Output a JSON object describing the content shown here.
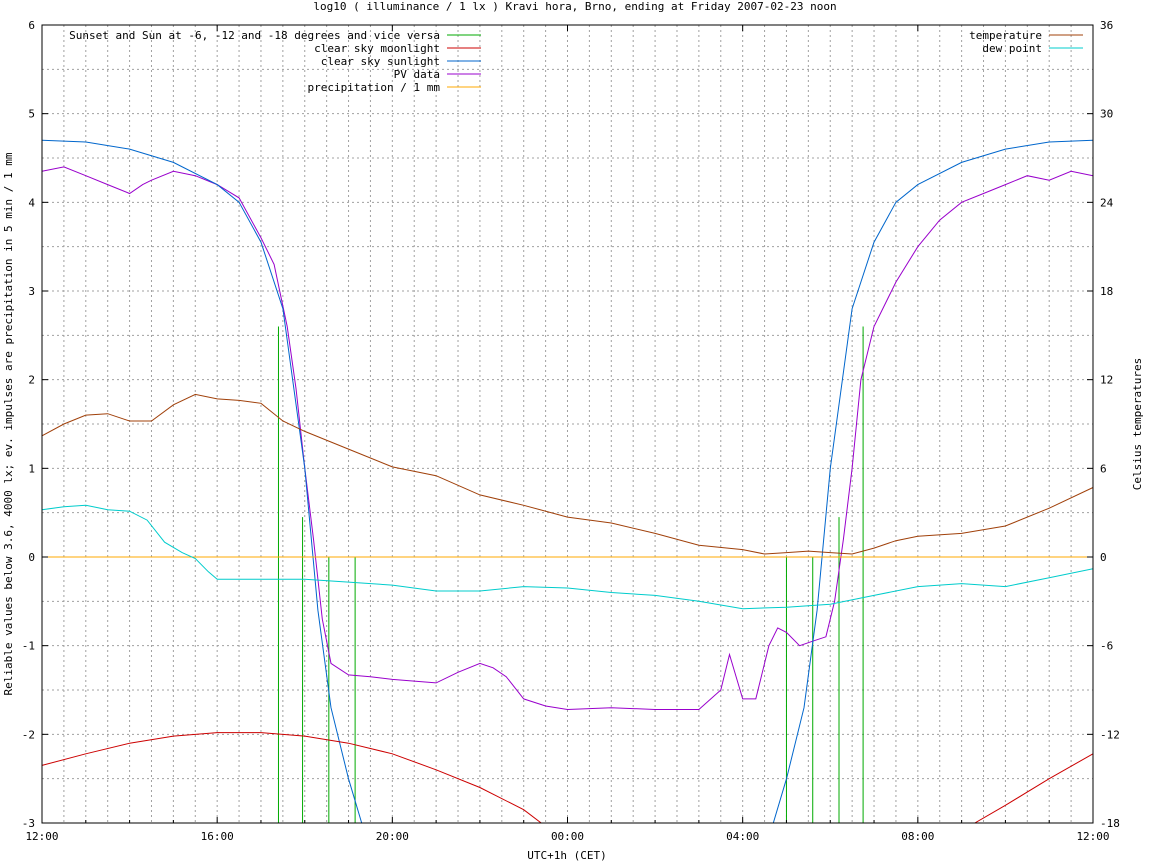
{
  "chart_data": {
    "type": "line",
    "title": "log10 ( illuminance / 1 lx ) Kravi hora, Brno, ending at Friday 2007-02-23 noon",
    "xlabel": "UTC+1h (CET)",
    "ylabel": "Reliable values below 3.6, 4000 lx; ev. impulses are precipitation in 5 min / 1 mm",
    "y2label": "Celsius temperatures",
    "xlim": [
      0,
      24
    ],
    "ylim": [
      -3,
      6
    ],
    "y2lim": [
      -18,
      36
    ],
    "x_ticks": [
      {
        "x": 0,
        "label": "12:00"
      },
      {
        "x": 4,
        "label": "16:00"
      },
      {
        "x": 8,
        "label": "20:00"
      },
      {
        "x": 12,
        "label": "00:00"
      },
      {
        "x": 16,
        "label": "04:00"
      },
      {
        "x": 20,
        "label": "08:00"
      },
      {
        "x": 24,
        "label": "12:00"
      }
    ],
    "y_ticks": [
      "-3",
      "-2",
      "-1",
      "0",
      "1",
      "2",
      "3",
      "4",
      "5",
      "6"
    ],
    "y2_ticks": [
      "-18",
      "-12",
      "-6",
      "0",
      "6",
      "12",
      "18",
      "24",
      "30",
      "36"
    ],
    "grid": true,
    "legend_left": {
      "placement": "top-left",
      "entries": [
        {
          "label": "Sunset and Sun at -6, -12 and -18 degrees and vice versa",
          "color": "#00aa00"
        },
        {
          "label": "clear sky moonlight",
          "color": "#cc0000"
        },
        {
          "label": "clear sky sunlight",
          "color": "#0066cc"
        },
        {
          "label": "PV data",
          "color": "#9900cc"
        },
        {
          "label": "precipitation / 1 mm",
          "color": "#ffaa00"
        }
      ]
    },
    "legend_right": {
      "placement": "top-right",
      "entries": [
        {
          "label": "temperature",
          "color": "#a0400a"
        },
        {
          "label": "dew point",
          "color": "#00cccc"
        }
      ]
    },
    "event_markers": [
      {
        "x": 5.4,
        "top": 2.6
      },
      {
        "x": 5.95,
        "top": 0.45
      },
      {
        "x": 6.55,
        "top": 0
      },
      {
        "x": 7.15,
        "top": 0
      },
      {
        "x": 17.0,
        "top": 0
      },
      {
        "x": 17.6,
        "top": 0
      },
      {
        "x": 18.2,
        "top": 0.45
      },
      {
        "x": 18.75,
        "top": 2.6
      }
    ],
    "series": [
      {
        "name": "PV data",
        "color": "#9900cc",
        "axis": "y",
        "points": [
          [
            0,
            4.35
          ],
          [
            0.5,
            4.4
          ],
          [
            1,
            4.3
          ],
          [
            1.5,
            4.2
          ],
          [
            2,
            4.1
          ],
          [
            2.3,
            4.2
          ],
          [
            2.5,
            4.25
          ],
          [
            3,
            4.35
          ],
          [
            3.5,
            4.3
          ],
          [
            4,
            4.2
          ],
          [
            4.5,
            4.05
          ],
          [
            5,
            3.6
          ],
          [
            5.3,
            3.3
          ],
          [
            5.6,
            2.6
          ],
          [
            5.8,
            1.9
          ],
          [
            6,
            1.0
          ],
          [
            6.2,
            0.2
          ],
          [
            6.4,
            -0.7
          ],
          [
            6.6,
            -1.2
          ],
          [
            7,
            -1.33
          ],
          [
            7.5,
            -1.35
          ],
          [
            8,
            -1.38
          ],
          [
            8.5,
            -1.4
          ],
          [
            9,
            -1.42
          ],
          [
            9.5,
            -1.3
          ],
          [
            10,
            -1.2
          ],
          [
            10.3,
            -1.25
          ],
          [
            10.6,
            -1.35
          ],
          [
            11,
            -1.6
          ],
          [
            11.5,
            -1.68
          ],
          [
            12,
            -1.72
          ],
          [
            13,
            -1.7
          ],
          [
            14,
            -1.72
          ],
          [
            15,
            -1.72
          ],
          [
            15.5,
            -1.5
          ],
          [
            15.7,
            -1.1
          ],
          [
            16,
            -1.6
          ],
          [
            16.3,
            -1.6
          ],
          [
            16.6,
            -1.0
          ],
          [
            16.8,
            -0.8
          ],
          [
            17,
            -0.85
          ],
          [
            17.3,
            -1.0
          ],
          [
            17.6,
            -0.95
          ],
          [
            17.9,
            -0.9
          ],
          [
            18.1,
            -0.5
          ],
          [
            18.3,
            0.2
          ],
          [
            18.5,
            1.0
          ],
          [
            18.7,
            2.0
          ],
          [
            19,
            2.6
          ],
          [
            19.5,
            3.1
          ],
          [
            20,
            3.5
          ],
          [
            20.5,
            3.8
          ],
          [
            21,
            4.0
          ],
          [
            21.5,
            4.1
          ],
          [
            22,
            4.2
          ],
          [
            22.5,
            4.3
          ],
          [
            23,
            4.25
          ],
          [
            23.5,
            4.35
          ],
          [
            24,
            4.3
          ]
        ]
      },
      {
        "name": "clear sky sunlight",
        "color": "#0066cc",
        "axis": "y",
        "points": [
          [
            0,
            4.7
          ],
          [
            1,
            4.68
          ],
          [
            2,
            4.6
          ],
          [
            3,
            4.45
          ],
          [
            4,
            4.2
          ],
          [
            4.5,
            4.0
          ],
          [
            5,
            3.55
          ],
          [
            5.5,
            2.8
          ],
          [
            6,
            1.0
          ],
          [
            6.3,
            -0.6
          ],
          [
            6.6,
            -1.7
          ],
          [
            7,
            -2.5
          ],
          [
            7.3,
            -3.0
          ],
          [
            16.7,
            -3.0
          ],
          [
            17,
            -2.5
          ],
          [
            17.4,
            -1.7
          ],
          [
            17.7,
            -0.6
          ],
          [
            18,
            1.0
          ],
          [
            18.5,
            2.8
          ],
          [
            19,
            3.55
          ],
          [
            19.5,
            4.0
          ],
          [
            20,
            4.2
          ],
          [
            21,
            4.45
          ],
          [
            22,
            4.6
          ],
          [
            23,
            4.68
          ],
          [
            24,
            4.7
          ]
        ]
      },
      {
        "name": "clear sky moonlight",
        "color": "#cc0000",
        "axis": "y",
        "points": [
          [
            0,
            -2.35
          ],
          [
            1,
            -2.22
          ],
          [
            2,
            -2.1
          ],
          [
            3,
            -2.02
          ],
          [
            4,
            -1.98
          ],
          [
            5,
            -1.98
          ],
          [
            6,
            -2.02
          ],
          [
            7,
            -2.1
          ],
          [
            8,
            -2.22
          ],
          [
            9,
            -2.4
          ],
          [
            10,
            -2.6
          ],
          [
            11,
            -2.85
          ],
          [
            11.4,
            -3.0
          ],
          [
            21.3,
            -3.0
          ],
          [
            22,
            -2.8
          ],
          [
            23,
            -2.5
          ],
          [
            24,
            -2.22
          ]
        ]
      },
      {
        "name": "precipitation / 1 mm",
        "color": "#ffaa00",
        "axis": "y",
        "points": [
          [
            0,
            0
          ],
          [
            24,
            0
          ]
        ]
      },
      {
        "name": "temperature",
        "color": "#a0400a",
        "axis": "y2",
        "points": [
          [
            0,
            8.2
          ],
          [
            0.5,
            9
          ],
          [
            1,
            9.6
          ],
          [
            1.5,
            9.7
          ],
          [
            2,
            9.2
          ],
          [
            2.5,
            9.2
          ],
          [
            3,
            10.3
          ],
          [
            3.5,
            11
          ],
          [
            4,
            10.7
          ],
          [
            4.5,
            10.6
          ],
          [
            5,
            10.4
          ],
          [
            5.5,
            9.2
          ],
          [
            6,
            8.5
          ],
          [
            7,
            7.3
          ],
          [
            8,
            6.1
          ],
          [
            9,
            5.5
          ],
          [
            10,
            4.2
          ],
          [
            11,
            3.5
          ],
          [
            12,
            2.7
          ],
          [
            13,
            2.3
          ],
          [
            14,
            1.6
          ],
          [
            15,
            0.8
          ],
          [
            16,
            0.5
          ],
          [
            16.5,
            0.2
          ],
          [
            17,
            0.3
          ],
          [
            17.5,
            0.4
          ],
          [
            18,
            0.3
          ],
          [
            18.5,
            0.2
          ],
          [
            19,
            0.6
          ],
          [
            19.5,
            1.1
          ],
          [
            20,
            1.4
          ],
          [
            21,
            1.6
          ],
          [
            22,
            2.1
          ],
          [
            23,
            3.3
          ],
          [
            24,
            4.7
          ]
        ]
      },
      {
        "name": "dew point",
        "color": "#00cccc",
        "axis": "y2",
        "points": [
          [
            0,
            3.2
          ],
          [
            0.5,
            3.4
          ],
          [
            1,
            3.5
          ],
          [
            1.5,
            3.2
          ],
          [
            2,
            3.1
          ],
          [
            2.4,
            2.5
          ],
          [
            2.8,
            1.0
          ],
          [
            3.2,
            0.3
          ],
          [
            3.5,
            -0.1
          ],
          [
            3.8,
            -1
          ],
          [
            4,
            -1.5
          ],
          [
            5,
            -1.5
          ],
          [
            6,
            -1.5
          ],
          [
            7,
            -1.7
          ],
          [
            8,
            -1.9
          ],
          [
            9,
            -2.3
          ],
          [
            10,
            -2.3
          ],
          [
            11,
            -2.0
          ],
          [
            12,
            -2.1
          ],
          [
            13,
            -2.4
          ],
          [
            14,
            -2.6
          ],
          [
            15,
            -3.0
          ],
          [
            16,
            -3.5
          ],
          [
            17,
            -3.4
          ],
          [
            18,
            -3.2
          ],
          [
            19,
            -2.6
          ],
          [
            20,
            -2.0
          ],
          [
            21,
            -1.8
          ],
          [
            22,
            -2.0
          ],
          [
            23,
            -1.4
          ],
          [
            24,
            -0.8
          ]
        ]
      }
    ]
  }
}
